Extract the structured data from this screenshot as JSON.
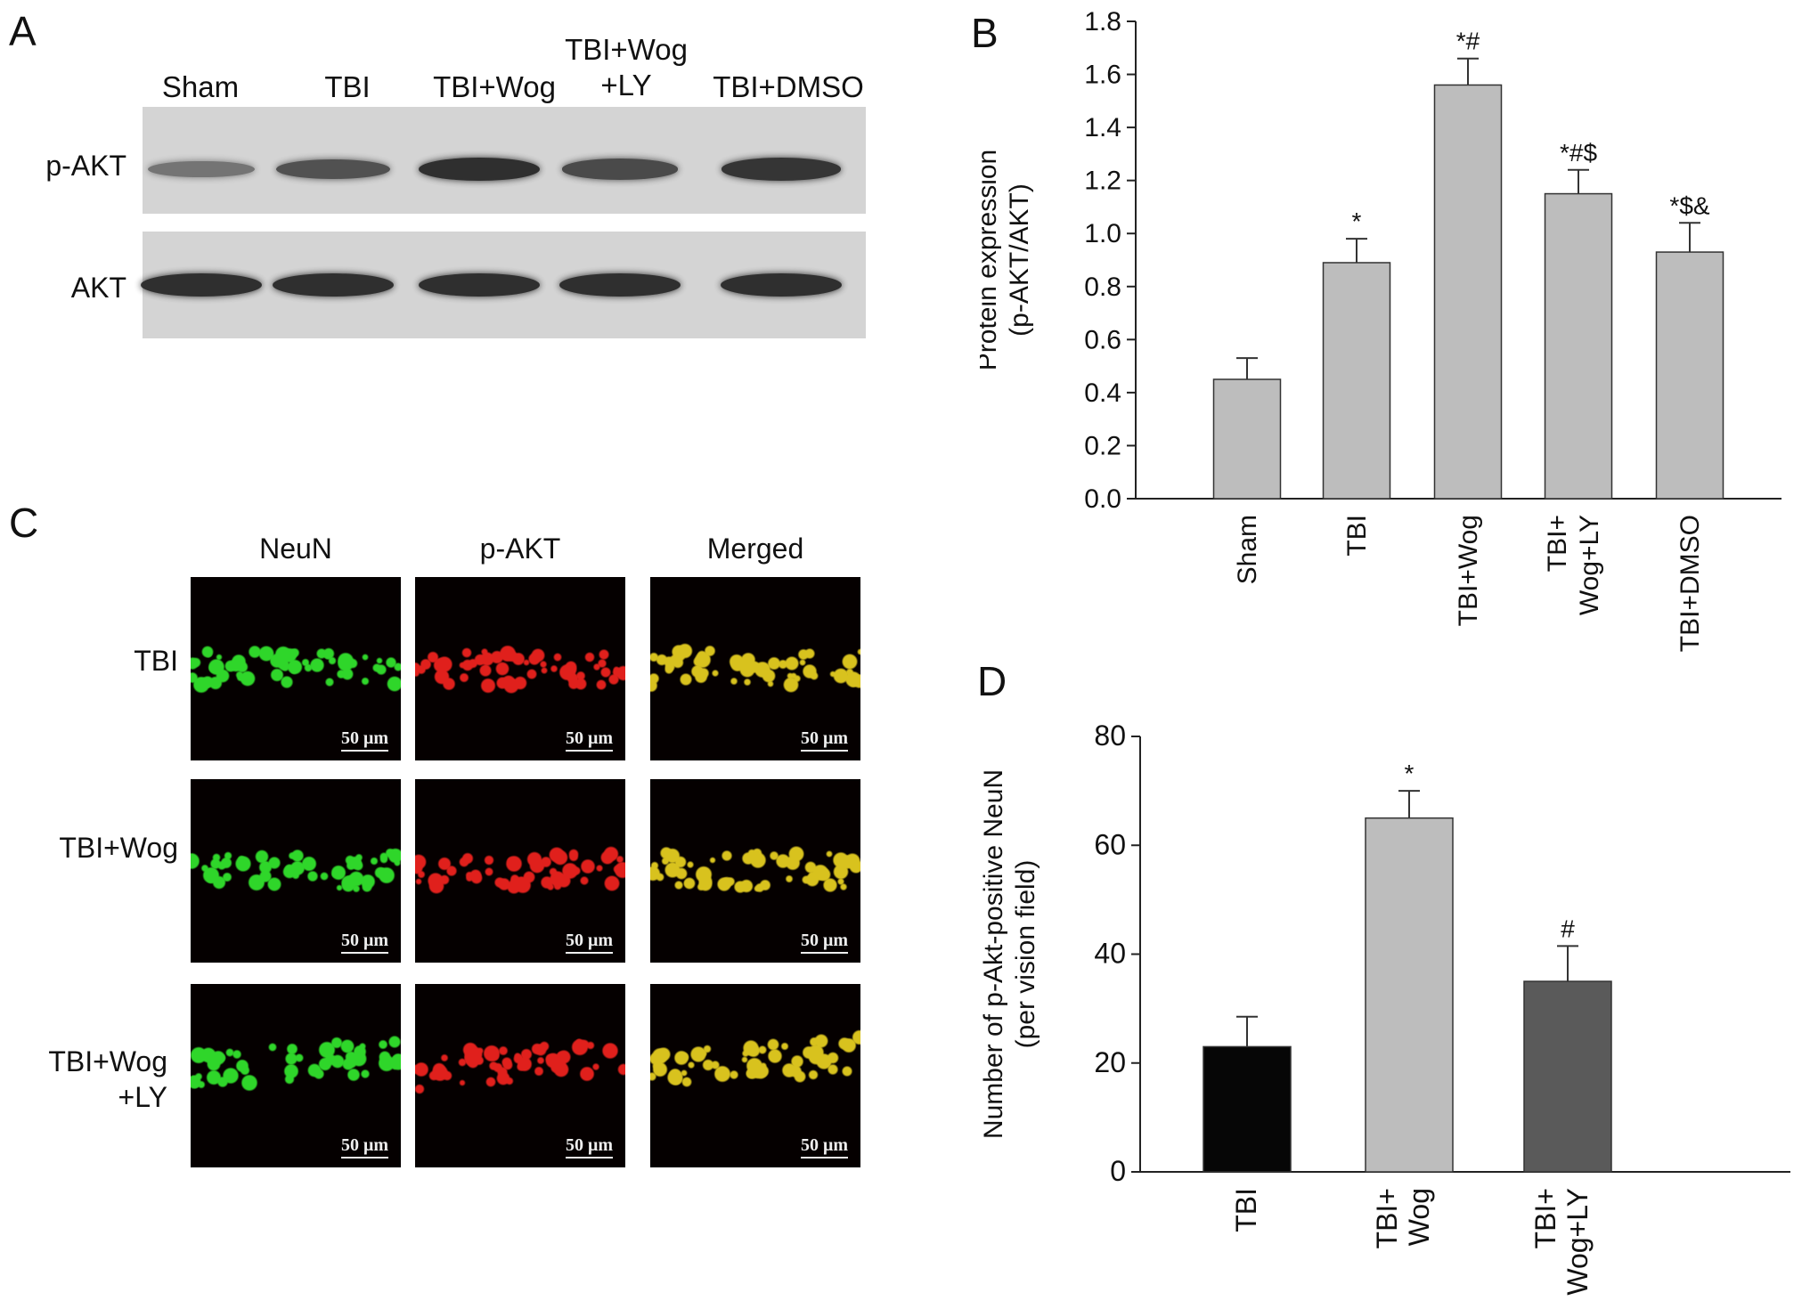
{
  "panels": {
    "a": {
      "letter": "A"
    },
    "b": {
      "letter": "B"
    },
    "c": {
      "letter": "C"
    },
    "d": {
      "letter": "D"
    }
  },
  "blot": {
    "lanes": [
      "Sham",
      "TBI",
      "TBI+Wog",
      "TBI+Wog\n+LY",
      "TBI+DMSO"
    ],
    "rows": [
      "p-AKT",
      "AKT"
    ],
    "band_intensity": {
      "p-AKT": [
        0.35,
        0.6,
        0.85,
        0.65,
        0.8
      ],
      "AKT": [
        0.85,
        0.85,
        0.85,
        0.85,
        0.85
      ]
    },
    "colors": {
      "membrane": "#d4d4d4",
      "band": "#1a1a1a"
    }
  },
  "fluorescence": {
    "columns": [
      "NeuN",
      "p-AKT",
      "Merged"
    ],
    "rows": [
      "TBI",
      "TBI+Wog\n+LY"
    ],
    "row_wog": "TBI+Wog",
    "scale_bar": "50 μm",
    "colors": {
      "NeuN": "#2fd62a",
      "p-AKT": "#e0201c",
      "Merged": "#d8c21e"
    }
  },
  "chart_data": [
    {
      "panel": "B",
      "type": "bar",
      "categories": [
        "Sham",
        "TBI",
        "TBI+Wog",
        "TBI+\nWog+LY",
        "TBI+DMSO"
      ],
      "values": [
        0.45,
        0.89,
        1.56,
        1.15,
        0.93
      ],
      "errors": [
        0.08,
        0.09,
        0.1,
        0.09,
        0.11
      ],
      "annotations": [
        "",
        "*",
        "*#",
        "*#$",
        "*$&"
      ],
      "ylabel_line1": "Protein expression",
      "ylabel_line2": "(p-AKT/AKT)",
      "ylim": [
        0,
        1.8
      ],
      "yticks": [
        "0.0",
        "0.2",
        "0.4",
        "0.6",
        "0.8",
        "1.0",
        "1.2",
        "1.4",
        "1.6",
        "1.8"
      ],
      "bar_color": "#bdbdbd"
    },
    {
      "panel": "D",
      "type": "bar",
      "categories": [
        "TBI",
        "TBI+\nWog",
        "TBI+\nWog+LY"
      ],
      "values": [
        23,
        65,
        35
      ],
      "errors": [
        5.5,
        5,
        6.5
      ],
      "annotations": [
        "",
        "*",
        "#"
      ],
      "ylabel_line1": "Number of p-Akt-positive NeuN",
      "ylabel_line2": "(per vision field)",
      "ylim": [
        0,
        80
      ],
      "yticks": [
        "0",
        "20",
        "40",
        "60",
        "80"
      ],
      "bar_colors": [
        "#060606",
        "#bdbdbd",
        "#5a5a5a"
      ]
    }
  ]
}
